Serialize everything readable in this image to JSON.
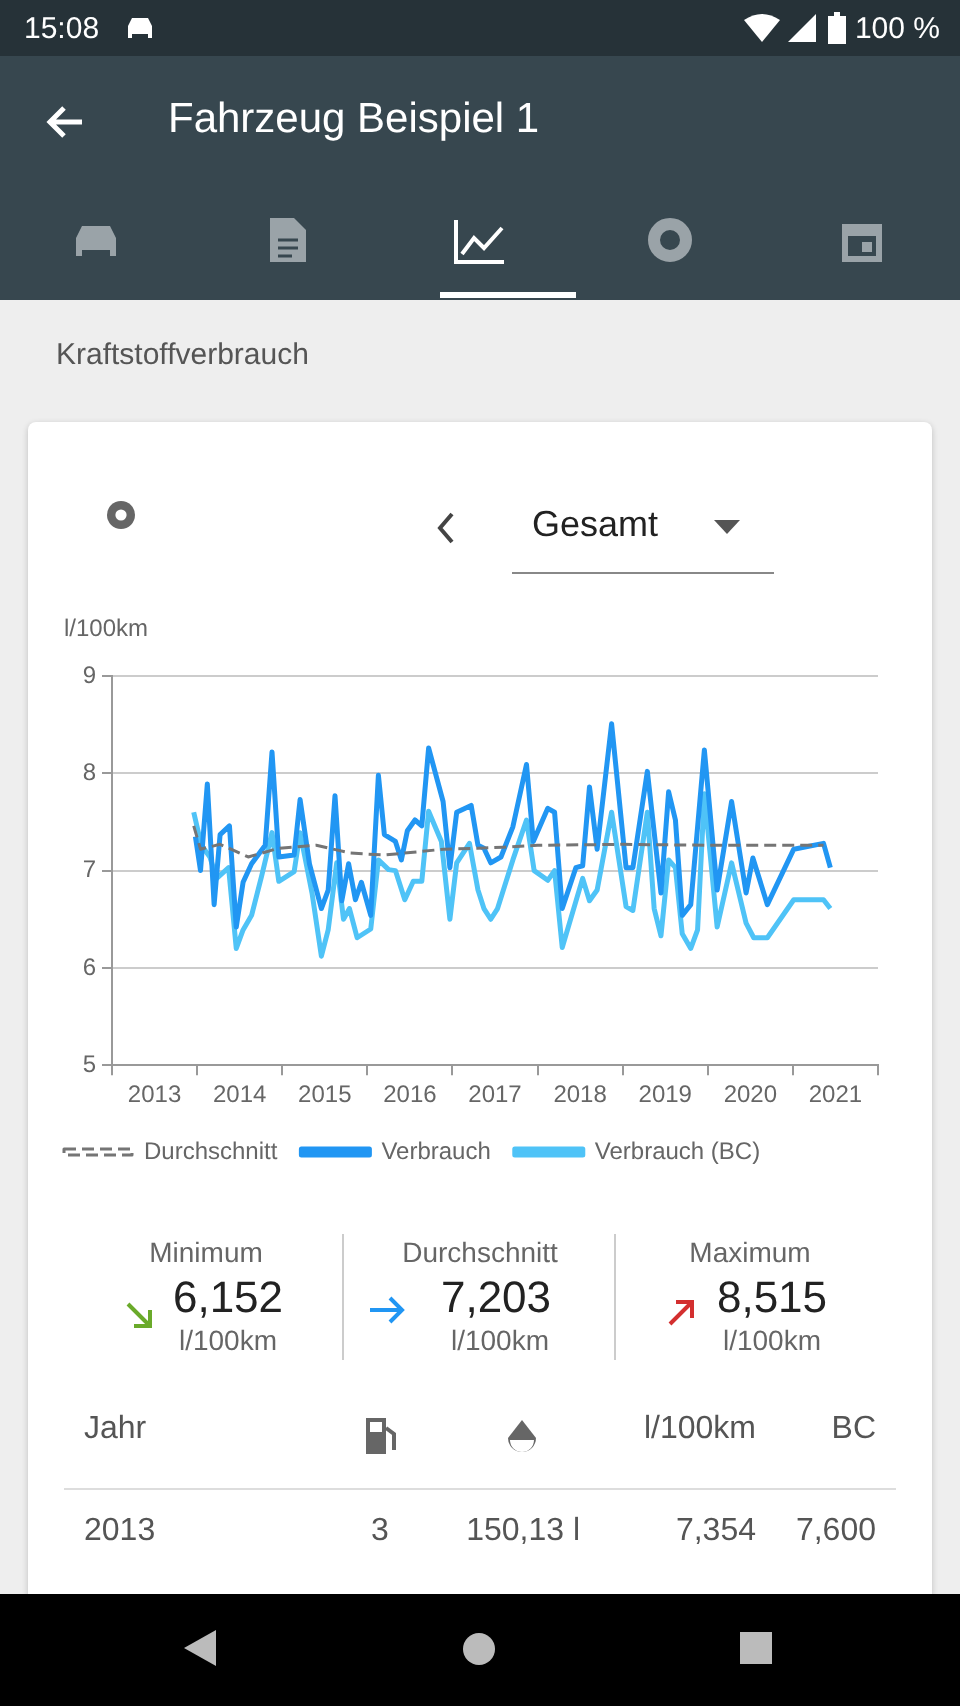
{
  "chart_data": {
    "type": "line",
    "title": "Kraftstoffverbrauch",
    "ylabel": "l/100km",
    "xlim": [
      2013,
      2022
    ],
    "xticks": [
      {
        "value": 2013,
        "label": null
      },
      {
        "value": 2013.5,
        "label": "2013"
      },
      {
        "value": 2014,
        "label": null
      },
      {
        "value": 2014.5,
        "label": "2014"
      },
      {
        "value": 2015,
        "label": null
      },
      {
        "value": 2015.5,
        "label": "2015"
      },
      {
        "value": 2016,
        "label": null
      },
      {
        "value": 2016.5,
        "label": "2016"
      },
      {
        "value": 2017,
        "label": null
      },
      {
        "value": 2017.5,
        "label": "2017"
      },
      {
        "value": 2018,
        "label": null
      },
      {
        "value": 2018.5,
        "label": "2018"
      },
      {
        "value": 2019,
        "label": null
      },
      {
        "value": 2019.5,
        "label": "2019"
      },
      {
        "value": 2020,
        "label": null
      },
      {
        "value": 2020.5,
        "label": "2020"
      },
      {
        "value": 2021,
        "label": null
      },
      {
        "value": 2021.5,
        "label": "2021"
      },
      {
        "value": 2022,
        "label": null
      }
    ],
    "ylim": [
      5,
      9
    ],
    "yticks": [
      5,
      6,
      7,
      8,
      9
    ],
    "grid": "y",
    "legend": "bottom",
    "marker": "none",
    "series": [
      {
        "name": "Verbrauch",
        "color": "#2196f3",
        "x": [
          2013.98,
          2014.04,
          2014.12,
          2014.2,
          2014.27,
          2014.38,
          2014.46,
          2014.54,
          2014.64,
          2014.8,
          2014.88,
          2014.96,
          2015.14,
          2015.21,
          2015.32,
          2015.46,
          2015.54,
          2015.62,
          2015.7,
          2015.78,
          2015.86,
          2015.93,
          2016.04,
          2016.13,
          2016.2,
          2016.33,
          2016.4,
          2016.47,
          2016.56,
          2016.64,
          2016.72,
          2016.89,
          2016.97,
          2017.05,
          2017.22,
          2017.3,
          2017.37,
          2017.45,
          2017.57,
          2017.71,
          2017.87,
          2017.95,
          2018.12,
          2018.2,
          2018.29,
          2018.45,
          2018.53,
          2018.61,
          2018.7,
          2018.87,
          2019.04,
          2019.12,
          2019.29,
          2019.45,
          2019.54,
          2019.62,
          2019.7,
          2019.8,
          2019.96,
          2020.11,
          2020.28,
          2020.45,
          2020.53,
          2020.7,
          2021.01,
          2021.36,
          2021.44
        ],
        "values": [
          7.35,
          7.0,
          7.89,
          6.65,
          7.37,
          7.46,
          6.42,
          6.88,
          7.07,
          7.26,
          8.22,
          7.14,
          7.16,
          7.73,
          7.07,
          6.61,
          6.8,
          7.77,
          6.69,
          7.07,
          6.7,
          6.88,
          6.54,
          7.98,
          7.37,
          7.3,
          7.11,
          7.41,
          7.52,
          7.46,
          8.26,
          7.71,
          7.03,
          7.6,
          7.67,
          7.26,
          7.23,
          7.08,
          7.14,
          7.45,
          8.09,
          7.3,
          7.64,
          7.6,
          6.61,
          7.03,
          7.05,
          7.86,
          7.22,
          8.51,
          7.03,
          7.03,
          8.02,
          6.77,
          7.81,
          7.52,
          6.54,
          6.65,
          8.24,
          6.8,
          7.71,
          6.77,
          7.13,
          6.65,
          7.22,
          7.28,
          7.03
        ]
      },
      {
        "name": "Verbrauch (BC)",
        "color": "#4fc3f7",
        "x": [
          2013.96,
          2014.05,
          2014.15,
          2014.23,
          2014.37,
          2014.46,
          2014.54,
          2014.64,
          2014.76,
          2014.88,
          2014.96,
          2015.14,
          2015.21,
          2015.35,
          2015.46,
          2015.54,
          2015.64,
          2015.72,
          2015.79,
          2015.88,
          2016.04,
          2016.13,
          2016.25,
          2016.33,
          2016.44,
          2016.54,
          2016.64,
          2016.72,
          2016.87,
          2016.97,
          2017.05,
          2017.2,
          2017.3,
          2017.37,
          2017.45,
          2017.53,
          2017.71,
          2017.87,
          2017.96,
          2018.12,
          2018.2,
          2018.29,
          2018.53,
          2018.61,
          2018.7,
          2018.87,
          2019.04,
          2019.12,
          2019.29,
          2019.37,
          2019.45,
          2019.54,
          2019.62,
          2019.7,
          2019.8,
          2019.88,
          2019.96,
          2020.11,
          2020.28,
          2020.45,
          2020.54,
          2020.7,
          2021.01,
          2021.36,
          2021.44
        ],
        "values": [
          7.6,
          7.26,
          7.14,
          6.92,
          7.03,
          6.2,
          6.39,
          6.54,
          6.95,
          7.39,
          6.89,
          6.99,
          7.39,
          6.77,
          6.12,
          6.39,
          7.08,
          6.5,
          6.61,
          6.31,
          6.4,
          7.11,
          7.01,
          7.0,
          6.7,
          6.89,
          6.89,
          7.61,
          7.3,
          6.5,
          7.08,
          7.28,
          6.8,
          6.61,
          6.5,
          6.61,
          7.11,
          7.52,
          7.0,
          6.9,
          7.0,
          6.21,
          6.92,
          6.69,
          6.8,
          7.6,
          6.63,
          6.59,
          7.6,
          6.61,
          6.33,
          7.11,
          7.03,
          6.35,
          6.2,
          6.39,
          7.79,
          6.42,
          7.08,
          6.46,
          6.31,
          6.31,
          6.7,
          6.7,
          6.61
        ]
      },
      {
        "name": "Durchschnitt",
        "color": "#757575",
        "line_style": "dashed",
        "x": [
          2013.96,
          2014.04,
          2014.27,
          2014.6,
          2014.96,
          2015.4,
          2015.8,
          2016.2,
          2016.9,
          2017.3,
          2017.6,
          2018.0,
          2019.0,
          2020.0,
          2021.36
        ],
        "values": [
          7.46,
          7.22,
          7.27,
          7.14,
          7.23,
          7.26,
          7.18,
          7.16,
          7.22,
          7.23,
          7.24,
          7.26,
          7.27,
          7.26,
          7.26
        ]
      }
    ],
    "annotations": [
      "15:08",
      "100 %",
      "Fahrzeug Beispiel 1",
      "Gesamt",
      "Minimum",
      "6,152",
      "l/100km",
      "Durchschnitt",
      "7,203",
      "l/100km",
      "Maximum",
      "8,515",
      "l/100km",
      "Jahr",
      "l/100km",
      "BC",
      "2013",
      "3",
      "150,13 l",
      "7,354",
      "7,600"
    ]
  }
}
